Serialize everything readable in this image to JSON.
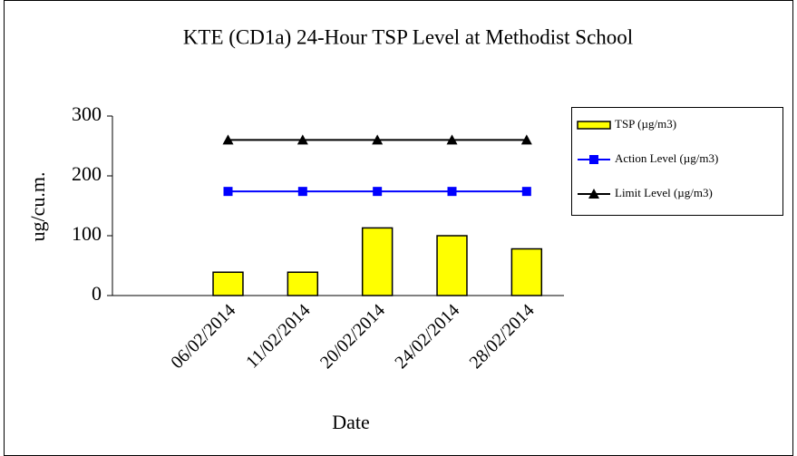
{
  "chart_data": {
    "type": "bar-line",
    "title": "KTE (CD1a) 24-Hour TSP Level at Methodist School",
    "x_label": "Date",
    "y_label": "ug/cu.m.",
    "categories": [
      null,
      "06/02/2014",
      "11/02/2014",
      "20/02/2014",
      "24/02/2014",
      "28/02/2014"
    ],
    "series": [
      {
        "name": "TSP (µg/m3)",
        "type": "bar",
        "color": "#ffff00",
        "values": [
          null,
          39,
          39,
          113,
          100,
          78
        ]
      },
      {
        "name": "Action Level (µg/m3)",
        "type": "line",
        "marker": "square",
        "color": "#0000ff",
        "values": [
          null,
          174,
          174,
          174,
          174,
          174
        ]
      },
      {
        "name": "Limit Level (µg/m3)",
        "type": "line",
        "marker": "triangle",
        "color": "#000000",
        "values": [
          null,
          260,
          260,
          260,
          260,
          260
        ]
      }
    ],
    "ylim": [
      0,
      300
    ],
    "yticks": [
      0,
      100,
      200,
      300
    ],
    "grid": false,
    "legend": "right"
  }
}
